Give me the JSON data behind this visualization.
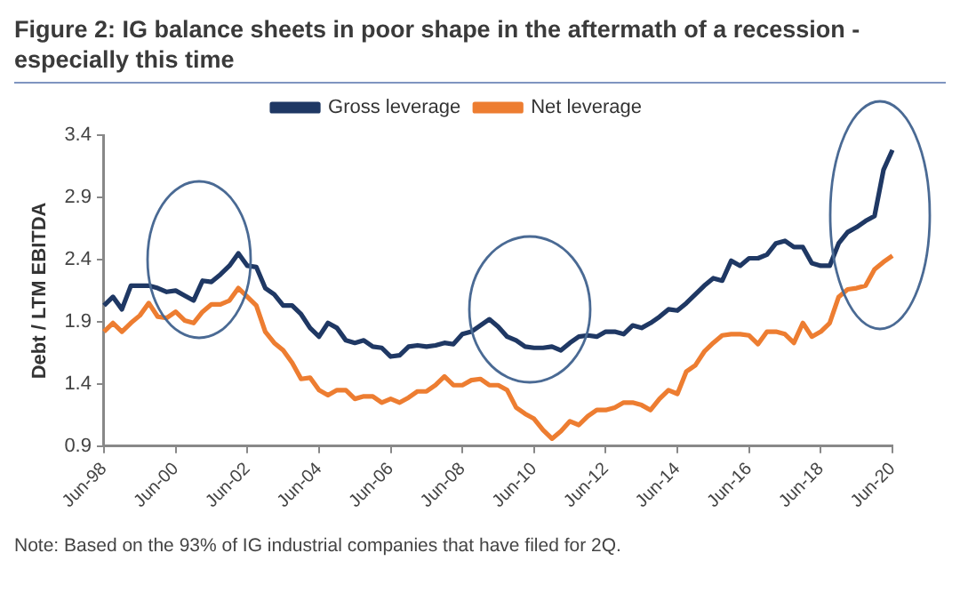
{
  "chart_data": {
    "type": "line",
    "title": "Figure 2: IG balance sheets in poor shape in the aftermath of a recession - especially this time",
    "ylabel": "Debt / LTM EBITDA",
    "categories": [
      "Jun-98",
      null,
      null,
      null,
      null,
      null,
      null,
      null,
      "Jun-00",
      null,
      null,
      null,
      null,
      null,
      null,
      null,
      "Jun-02",
      null,
      null,
      null,
      null,
      null,
      null,
      null,
      "Jun-04",
      null,
      null,
      null,
      null,
      null,
      null,
      null,
      "Jun-06",
      null,
      null,
      null,
      null,
      null,
      null,
      null,
      "Jun-08",
      null,
      null,
      null,
      null,
      null,
      null,
      null,
      "Jun-10",
      null,
      null,
      null,
      null,
      null,
      null,
      null,
      "Jun-12",
      null,
      null,
      null,
      null,
      null,
      null,
      null,
      "Jun-14",
      null,
      null,
      null,
      null,
      null,
      null,
      null,
      "Jun-16",
      null,
      null,
      null,
      null,
      null,
      null,
      null,
      "Jun-18",
      null,
      null,
      null,
      null,
      null,
      null,
      null,
      "Jun-20"
    ],
    "series": [
      {
        "name": "Gross leverage",
        "color": "#1f3864",
        "values": [
          2.03,
          2.1,
          2.0,
          2.19,
          2.19,
          2.19,
          2.17,
          2.14,
          2.15,
          2.11,
          2.07,
          2.23,
          2.22,
          2.28,
          2.35,
          2.45,
          2.35,
          2.34,
          2.17,
          2.12,
          2.03,
          2.03,
          1.96,
          1.85,
          1.78,
          1.89,
          1.85,
          1.75,
          1.73,
          1.75,
          1.7,
          1.69,
          1.62,
          1.63,
          1.7,
          1.71,
          1.7,
          1.71,
          1.73,
          1.72,
          1.8,
          1.82,
          1.87,
          1.92,
          1.86,
          1.78,
          1.75,
          1.7,
          1.69,
          1.69,
          1.7,
          1.67,
          1.73,
          1.78,
          1.79,
          1.78,
          1.82,
          1.82,
          1.8,
          1.87,
          1.85,
          1.89,
          1.94,
          2.0,
          1.99,
          2.05,
          2.12,
          2.19,
          2.25,
          2.23,
          2.39,
          2.35,
          2.41,
          2.41,
          2.44,
          2.53,
          2.55,
          2.5,
          2.5,
          2.37,
          2.35,
          2.35,
          2.53,
          2.62,
          2.66,
          2.71,
          2.75,
          3.12,
          3.28
        ]
      },
      {
        "name": "Net leverage",
        "color": "#ed7d31",
        "values": [
          1.82,
          1.89,
          1.82,
          1.89,
          1.95,
          2.05,
          1.94,
          1.93,
          1.98,
          1.91,
          1.89,
          1.98,
          2.04,
          2.04,
          2.07,
          2.17,
          2.1,
          2.03,
          1.82,
          1.73,
          1.67,
          1.57,
          1.44,
          1.45,
          1.35,
          1.31,
          1.35,
          1.35,
          1.28,
          1.3,
          1.3,
          1.25,
          1.28,
          1.25,
          1.29,
          1.34,
          1.34,
          1.39,
          1.46,
          1.39,
          1.39,
          1.43,
          1.44,
          1.39,
          1.39,
          1.35,
          1.21,
          1.16,
          1.12,
          1.03,
          0.96,
          1.02,
          1.1,
          1.07,
          1.14,
          1.19,
          1.19,
          1.21,
          1.25,
          1.25,
          1.23,
          1.19,
          1.28,
          1.35,
          1.32,
          1.5,
          1.55,
          1.66,
          1.73,
          1.79,
          1.8,
          1.8,
          1.79,
          1.72,
          1.82,
          1.82,
          1.8,
          1.73,
          1.89,
          1.78,
          1.82,
          1.89,
          2.1,
          2.16,
          2.17,
          2.19,
          2.32,
          2.38,
          2.43
        ]
      }
    ],
    "ylim": [
      0.9,
      3.4
    ],
    "yticks": [
      0.9,
      1.4,
      1.9,
      2.4,
      2.9,
      3.4
    ],
    "grid": false,
    "legend": "top",
    "marker": "none",
    "line_style": "solid",
    "annotations": [
      "Note: Based on the 93% of IG industrial companies that have filed for 2Q."
    ]
  }
}
